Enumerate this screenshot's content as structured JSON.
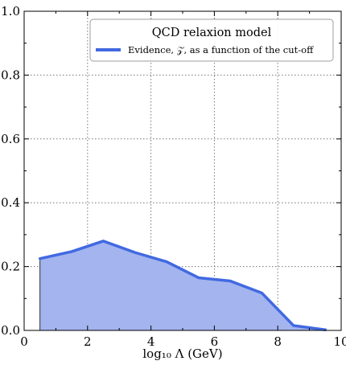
{
  "chart_data": {
    "type": "area",
    "xlabel": "log₁₀ Λ (GeV)",
    "ylabel": "",
    "xlim": [
      0,
      10
    ],
    "ylim": [
      0,
      1.0
    ],
    "xticks": [
      "0",
      "2",
      "4",
      "6",
      "8",
      "10"
    ],
    "yticks": [
      "0.0",
      "0.2",
      "0.4",
      "0.6",
      "0.8",
      "1.0"
    ],
    "grid": true,
    "legend": {
      "placement": "top-right",
      "title": "QCD relaxion model",
      "entries": [
        "Evidence, 𝒵, as a function of the cut-off"
      ]
    },
    "series": [
      {
        "name": "Evidence, 𝒵, as a function of the cut-off",
        "color": "#4169e1",
        "fill_color": "#a3b4ef",
        "x": [
          0.5,
          1.5,
          2.5,
          3.5,
          4.5,
          5.5,
          6.5,
          7.5,
          8.5,
          9.5
        ],
        "y": [
          0.225,
          0.247,
          0.28,
          0.244,
          0.215,
          0.165,
          0.155,
          0.117,
          0.015,
          0.002
        ]
      }
    ]
  }
}
